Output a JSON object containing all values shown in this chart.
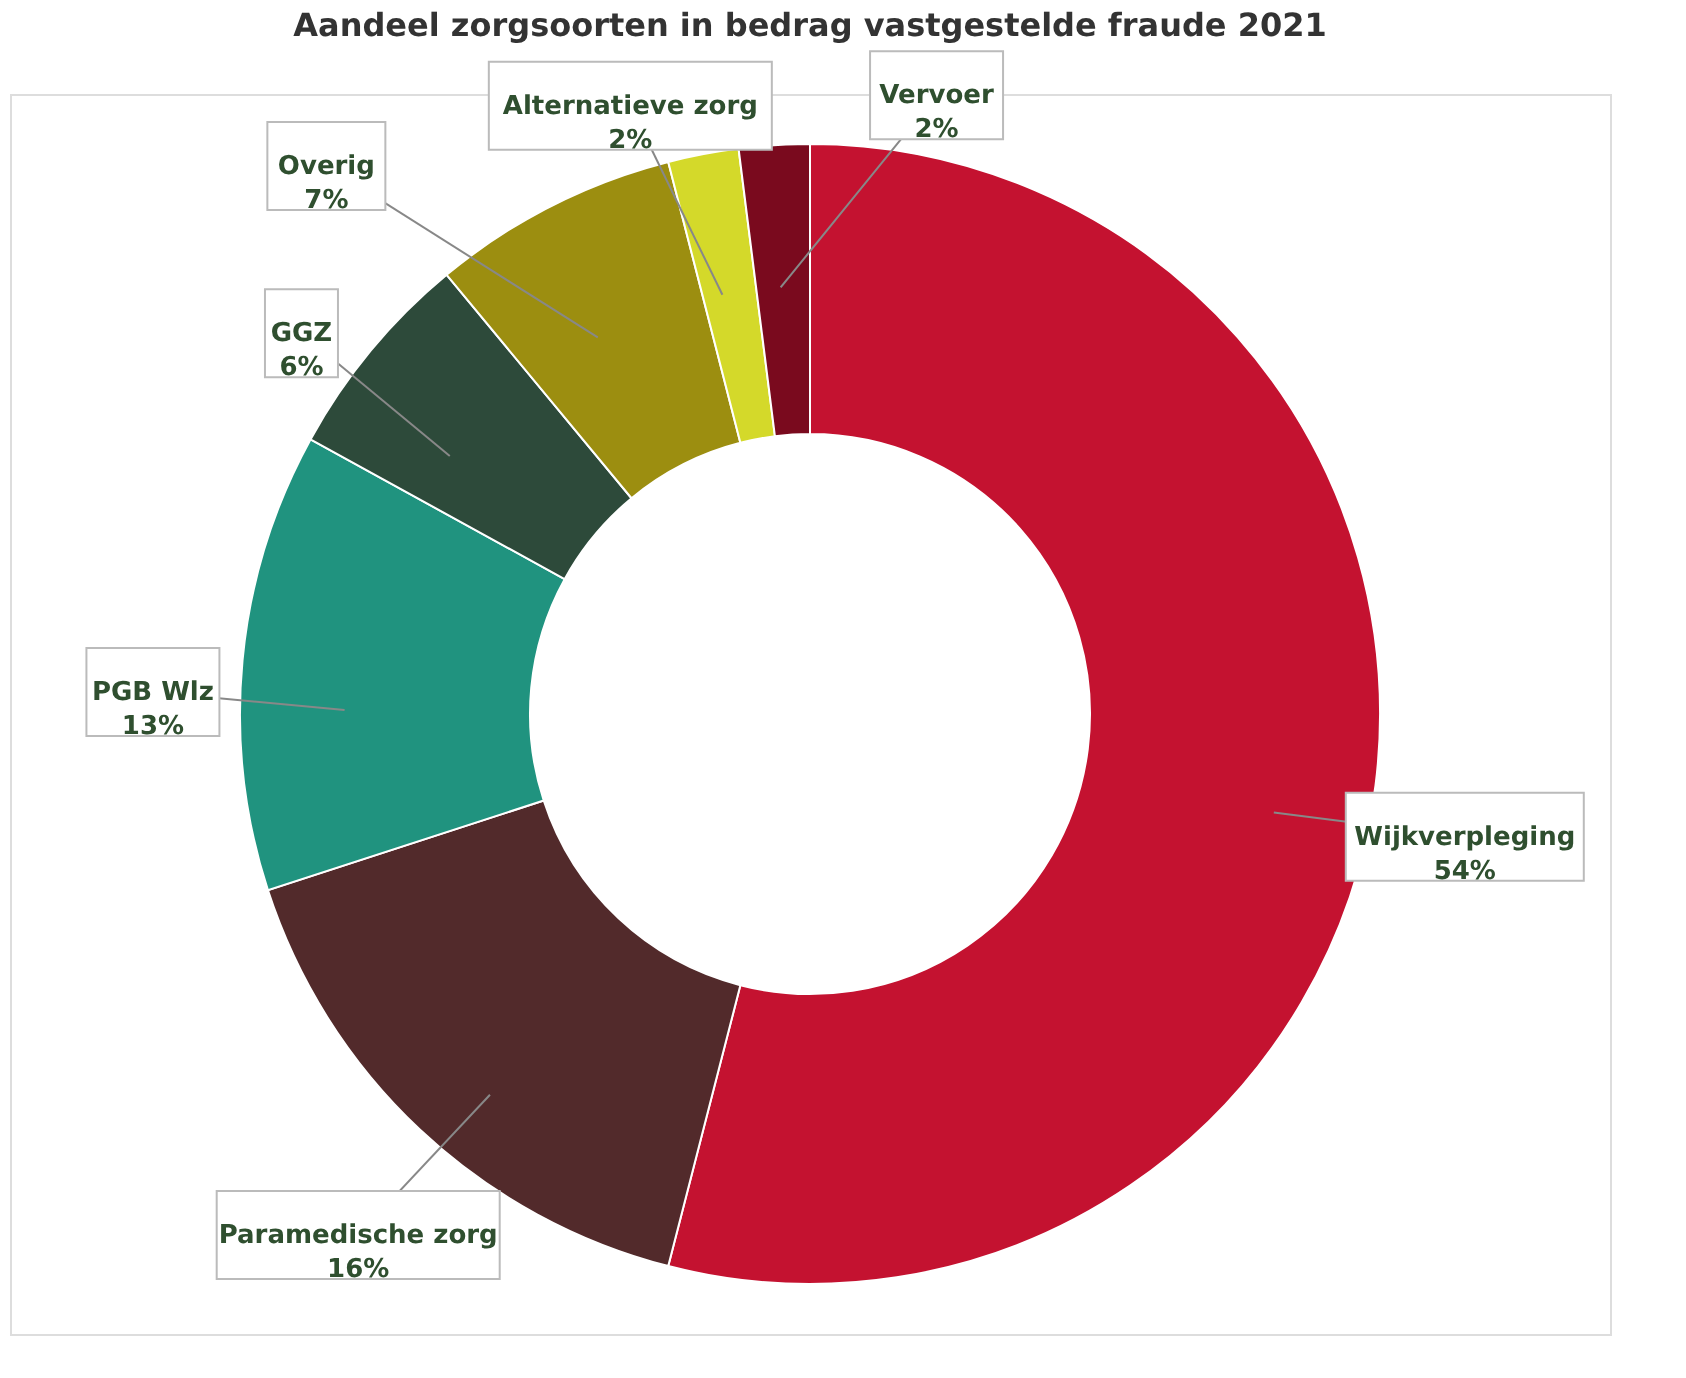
{
  "chart_data": {
    "type": "donut",
    "title": "Aandeel zorgsoorten in bedrag vastgestelde fraude 2021",
    "categories": [
      "Wijkverpleging",
      "Paramedische zorg",
      "PGB Wlz",
      "GGZ",
      "Overig",
      "Alternatieve zorg",
      "Vervoer"
    ],
    "values": [
      54,
      16,
      13,
      6,
      7,
      2,
      2
    ],
    "value_labels": [
      "54%",
      "16%",
      "13%",
      "6%",
      "7%",
      "2%",
      "2%"
    ],
    "colors": [
      "#c41230",
      "#522a2b",
      "#20937f",
      "#2d4a3a",
      "#9c8e10",
      "#d4d92a",
      "#7a0a1e"
    ],
    "legend": false
  }
}
